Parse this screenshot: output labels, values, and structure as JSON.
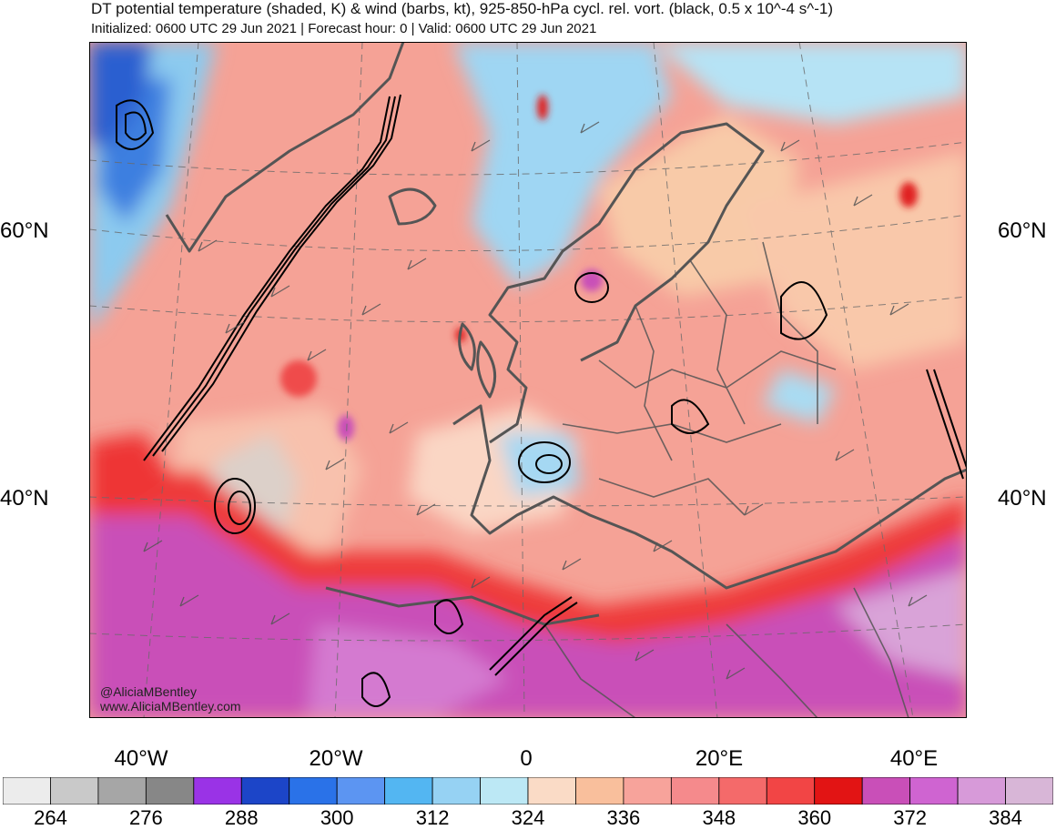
{
  "header": {
    "title": "DT potential temperature (shaded, K) & wind (barbs, kt), 925-850-hPa cycl. rel. vort. (black, 0.5 x 10^-4 s^-1)",
    "subtitle": "Initialized: 0600 UTC 29 Jun 2021 | Forecast hour: 0 | Valid: 0600 UTC 29 Jun 2021"
  },
  "map": {
    "lat_labels": [
      "60°N",
      "40°N"
    ],
    "lon_labels": [
      "40°W",
      "20°W",
      "0",
      "20°E",
      "40°E"
    ],
    "credit": [
      "@AliciaMBentley",
      "www.AliciaMBentley.com"
    ],
    "colors": {
      "ocean_warm": "#f49a8e",
      "cold": "#8ecdf0",
      "hot": "#c94fb8",
      "coast": "#555555"
    }
  },
  "colorbar": {
    "colors": [
      "#ececec",
      "#c9c9c9",
      "#a6a6a6",
      "#878787",
      "#9a33e6",
      "#1c45c8",
      "#2a72e8",
      "#5c95f2",
      "#53b6f2",
      "#96d2f3",
      "#bce8f5",
      "#fadbc6",
      "#f9bf9c",
      "#f7a39b",
      "#f58a8c",
      "#f46a6a",
      "#f24545",
      "#e21414",
      "#c94fb8",
      "#cf64d1",
      "#d79ad9",
      "#d8b6d7"
    ],
    "labels": [
      "264",
      "276",
      "288",
      "300",
      "312",
      "324",
      "336",
      "348",
      "360",
      "372",
      "384"
    ]
  }
}
